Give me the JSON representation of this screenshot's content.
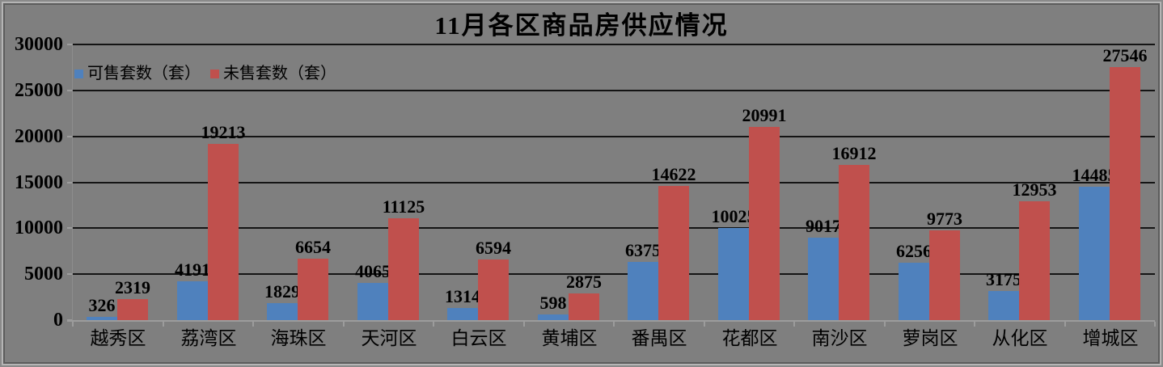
{
  "chart_data": {
    "type": "bar",
    "title": "11月各区商品房供应情况",
    "categories": [
      "越秀区",
      "荔湾区",
      "海珠区",
      "天河区",
      "白云区",
      "黄埔区",
      "番禺区",
      "花都区",
      "南沙区",
      "萝岗区",
      "从化区",
      "增城区"
    ],
    "series": [
      {
        "name": "可售套数（套）",
        "color": "#4F81BD",
        "values": [
          326,
          4191,
          1829,
          4065,
          1314,
          598,
          6375,
          10025,
          9017,
          6256,
          3175,
          14485
        ]
      },
      {
        "name": "未售套数（套）",
        "color": "#C0504D",
        "values": [
          2319,
          19213,
          6654,
          11125,
          6594,
          2875,
          14622,
          20991,
          16912,
          9773,
          12953,
          27546
        ]
      }
    ],
    "xlabel": "",
    "ylabel": "",
    "ylim": [
      0,
      30000
    ],
    "y_ticks": [
      0,
      5000,
      10000,
      15000,
      20000,
      25000,
      30000
    ],
    "grid": "horizontal",
    "legend_position": "top-left-inside",
    "data_labels": true,
    "background_color": "#7F7F7F",
    "gridline_color": "#141414",
    "axis_color": "#9C9C9C",
    "text_color": "#000000"
  }
}
